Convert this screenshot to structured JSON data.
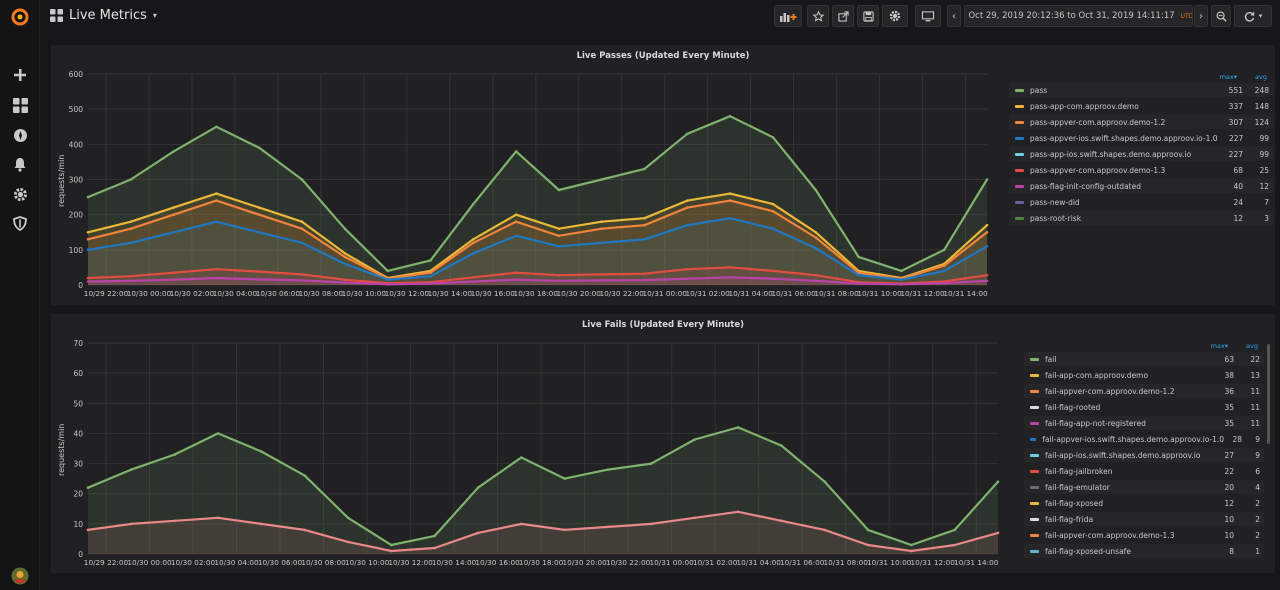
{
  "app": {
    "dashboard_title": "Live Metrics",
    "accent_color": "#eb7b18"
  },
  "sidebar": {
    "items": [
      {
        "name": "logo",
        "icon": "grafana-logo-icon"
      },
      {
        "name": "create",
        "icon": "plus-icon"
      },
      {
        "name": "dashboards",
        "icon": "apps-grid-icon"
      },
      {
        "name": "explore",
        "icon": "compass-icon"
      },
      {
        "name": "alerting",
        "icon": "bell-icon"
      },
      {
        "name": "configuration",
        "icon": "gear-icon"
      },
      {
        "name": "server-admin",
        "icon": "shield-icon"
      },
      {
        "name": "profile",
        "icon": "avatar-icon"
      }
    ]
  },
  "toolbar": {
    "buttons": [
      "add-panel-icon",
      "star-icon",
      "share-icon",
      "save-icon",
      "settings-icon",
      "tv-mode-icon"
    ],
    "time_range": "Oct 29, 2019 20:12:36 to Oct 31, 2019 14:11:17",
    "timezone": "UTC"
  },
  "x_ticks": [
    "10/29 22:00",
    "10/30 00:00",
    "10/30 02:00",
    "10/30 04:00",
    "10/30 06:00",
    "10/30 08:00",
    "10/30 10:00",
    "10/30 12:00",
    "10/30 14:00",
    "10/30 16:00",
    "10/30 18:00",
    "10/30 20:00",
    "10/30 22:00",
    "10/31 00:00",
    "10/31 02:00",
    "10/31 04:00",
    "10/31 06:00",
    "10/31 08:00",
    "10/31 10:00",
    "10/31 12:00",
    "10/31 14:00"
  ],
  "panels": [
    {
      "title": "Live Passes (Updated Every Minute)",
      "ylabel": "requests/min",
      "legend_headers": {
        "max": "max",
        "avg": "avg"
      },
      "legend": [
        {
          "name": "pass",
          "max": "551",
          "avg": "248",
          "color": "#7eb26d"
        },
        {
          "name": "pass-app-com.approov.demo",
          "max": "337",
          "avg": "148",
          "color": "#eab839"
        },
        {
          "name": "pass-appver-com.approov.demo-1.2",
          "max": "307",
          "avg": "124",
          "color": "#ef843c"
        },
        {
          "name": "pass-appver-ios.swift.shapes.demo.approov.io-1.0",
          "max": "227",
          "avg": "99",
          "color": "#1f78c1"
        },
        {
          "name": "pass-app-ios.swift.shapes.demo.approov.io",
          "max": "227",
          "avg": "99",
          "color": "#6ed0e0"
        },
        {
          "name": "pass-appver-com.approov.demo-1.3",
          "max": "68",
          "avg": "25",
          "color": "#e24d42"
        },
        {
          "name": "pass-flag-init-config-outdated",
          "max": "40",
          "avg": "12",
          "color": "#ba43a9"
        },
        {
          "name": "pass-new-did",
          "max": "24",
          "avg": "7",
          "color": "#705da0"
        },
        {
          "name": "pass-root-risk",
          "max": "12",
          "avg": "3",
          "color": "#508642"
        }
      ]
    },
    {
      "title": "Live Fails (Updated Every Minute)",
      "ylabel": "requests/min",
      "legend_headers": {
        "max": "max",
        "avg": "avg"
      },
      "legend": [
        {
          "name": "fail",
          "max": "63",
          "avg": "22",
          "color": "#7eb26d"
        },
        {
          "name": "fail-app-com.approov.demo",
          "max": "38",
          "avg": "13",
          "color": "#eab839"
        },
        {
          "name": "fail-appver-com.approov.demo-1.2",
          "max": "36",
          "avg": "11",
          "color": "#ef843c"
        },
        {
          "name": "fail-flag-rooted",
          "max": "35",
          "avg": "11",
          "color": "#d8d9da"
        },
        {
          "name": "fail-flag-app-not-registered",
          "max": "35",
          "avg": "11",
          "color": "#ba43a9"
        },
        {
          "name": "fail-appver-ios.swift.shapes.demo.approov.io-1.0",
          "max": "28",
          "avg": "9",
          "color": "#1f78c1"
        },
        {
          "name": "fail-app-ios.swift.shapes.demo.approov.io",
          "max": "27",
          "avg": "9",
          "color": "#6ed0e0"
        },
        {
          "name": "fail-flag-jailbroken",
          "max": "22",
          "avg": "6",
          "color": "#e24d42"
        },
        {
          "name": "fail-flag-emulator",
          "max": "20",
          "avg": "4",
          "color": "#6d6d6d"
        },
        {
          "name": "fail-flag-xposed",
          "max": "12",
          "avg": "2",
          "color": "#eab839"
        },
        {
          "name": "fail-flag-frida",
          "max": "10",
          "avg": "2",
          "color": "#d8d9da"
        },
        {
          "name": "fail-appver-com.approov.demo-1.3",
          "max": "10",
          "avg": "2",
          "color": "#ef843c"
        },
        {
          "name": "fail-flag-xposed-unsafe",
          "max": "8",
          "avg": "1",
          "color": "#64b0c8"
        }
      ]
    }
  ],
  "chart_data": [
    {
      "type": "area",
      "title": "Live Passes (Updated Every Minute)",
      "ylabel": "requests/min",
      "ylim": [
        0,
        600
      ],
      "yticks": [
        0,
        100,
        200,
        300,
        400,
        500,
        600
      ],
      "x": [
        "10/29 20:12",
        "10/29 22:00",
        "10/30 00:00",
        "10/30 02:00",
        "10/30 04:00",
        "10/30 06:00",
        "10/30 08:00",
        "10/30 10:00",
        "10/30 12:00",
        "10/30 14:00",
        "10/30 16:00",
        "10/30 18:00",
        "10/30 20:00",
        "10/30 22:00",
        "10/31 00:00",
        "10/31 02:00",
        "10/31 04:00",
        "10/31 06:00",
        "10/31 08:00",
        "10/31 10:00",
        "10/31 12:00",
        "10/31 14:11"
      ],
      "series": [
        {
          "name": "pass",
          "color": "#7eb26d",
          "values": [
            250,
            300,
            380,
            450,
            390,
            300,
            160,
            40,
            70,
            230,
            380,
            270,
            300,
            330,
            430,
            480,
            420,
            270,
            80,
            40,
            100,
            300
          ]
        },
        {
          "name": "pass-app-com.approov.demo",
          "color": "#eab839",
          "values": [
            150,
            180,
            220,
            260,
            220,
            180,
            90,
            20,
            40,
            130,
            200,
            160,
            180,
            190,
            240,
            260,
            230,
            150,
            40,
            20,
            60,
            170
          ]
        },
        {
          "name": "pass-appver-com.approov.demo-1.2",
          "color": "#ef843c",
          "values": [
            130,
            160,
            200,
            240,
            200,
            160,
            80,
            18,
            35,
            120,
            180,
            140,
            160,
            170,
            220,
            240,
            210,
            135,
            35,
            18,
            55,
            150
          ]
        },
        {
          "name": "pass-appver-ios.swift.shapes.demo.approov.io-1.0",
          "color": "#1f78c1",
          "values": [
            100,
            120,
            150,
            180,
            150,
            120,
            60,
            15,
            25,
            90,
            140,
            110,
            120,
            130,
            170,
            190,
            160,
            105,
            28,
            15,
            40,
            110
          ]
        },
        {
          "name": "pass-appver-com.approov.demo-1.3",
          "color": "#e24d42",
          "values": [
            20,
            25,
            35,
            45,
            38,
            30,
            15,
            5,
            8,
            22,
            35,
            28,
            30,
            32,
            45,
            50,
            40,
            28,
            8,
            4,
            10,
            28
          ]
        },
        {
          "name": "pass-flag-init-config-outdated",
          "color": "#ba43a9",
          "values": [
            10,
            12,
            15,
            20,
            16,
            13,
            7,
            2,
            4,
            10,
            15,
            12,
            13,
            14,
            18,
            22,
            18,
            12,
            4,
            2,
            5,
            12
          ]
        }
      ]
    },
    {
      "type": "area",
      "title": "Live Fails (Updated Every Minute)",
      "ylabel": "requests/min",
      "ylim": [
        0,
        70
      ],
      "yticks": [
        0,
        10,
        20,
        30,
        40,
        50,
        60,
        70
      ],
      "x": [
        "10/29 20:12",
        "10/29 22:00",
        "10/30 00:00",
        "10/30 02:00",
        "10/30 04:00",
        "10/30 06:00",
        "10/30 08:00",
        "10/30 10:00",
        "10/30 12:00",
        "10/30 14:00",
        "10/30 16:00",
        "10/30 18:00",
        "10/30 20:00",
        "10/30 22:00",
        "10/31 00:00",
        "10/31 02:00",
        "10/31 04:00",
        "10/31 06:00",
        "10/31 08:00",
        "10/31 10:00",
        "10/31 12:00",
        "10/31 14:11"
      ],
      "series": [
        {
          "name": "fail",
          "color": "#7eb26d",
          "values": [
            22,
            28,
            33,
            40,
            34,
            26,
            12,
            3,
            6,
            22,
            32,
            25,
            28,
            30,
            38,
            42,
            36,
            24,
            8,
            3,
            8,
            24
          ]
        },
        {
          "name": "fail-flag-jailbroken",
          "color": "#e88888",
          "values": [
            8,
            10,
            11,
            12,
            10,
            8,
            4,
            1,
            2,
            7,
            10,
            8,
            9,
            10,
            12,
            14,
            11,
            8,
            3,
            1,
            3,
            7
          ]
        }
      ]
    }
  ]
}
